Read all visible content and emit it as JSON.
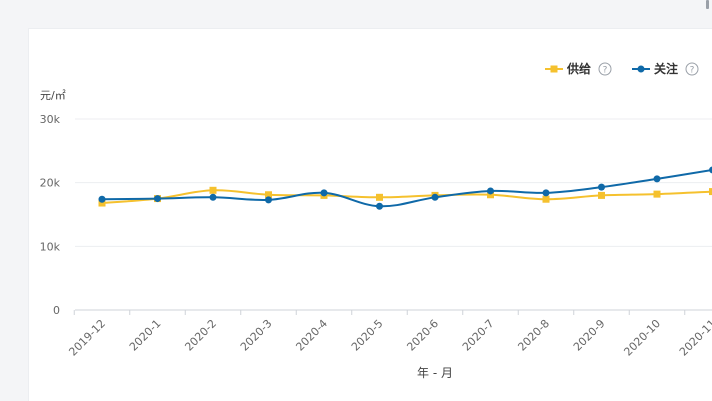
{
  "chart_data": {
    "type": "line",
    "title": "",
    "ylabel": "元/㎡",
    "xlabel": "年 - 月",
    "ylim": [
      0,
      30000
    ],
    "yticks": [
      {
        "value": 0,
        "label": "0"
      },
      {
        "value": 10000,
        "label": "10k"
      },
      {
        "value": 20000,
        "label": "20k"
      },
      {
        "value": 30000,
        "label": "30k"
      }
    ],
    "categories": [
      "2019-12",
      "2020-1",
      "2020-2",
      "2020-3",
      "2020-4",
      "2020-5",
      "2020-6",
      "2020-7",
      "2020-8",
      "2020-9",
      "2020-10",
      "2020-11"
    ],
    "series": [
      {
        "name": "供给",
        "color": "#f5c12e",
        "marker": "square",
        "values": [
          16800,
          17500,
          18800,
          18100,
          18000,
          17700,
          18000,
          18100,
          17400,
          18000,
          18200,
          18600
        ]
      },
      {
        "name": "关注",
        "color": "#0f69a8",
        "marker": "circle",
        "values": [
          17400,
          17500,
          17700,
          17300,
          18400,
          16300,
          17700,
          18700,
          18400,
          19300,
          20600,
          22000
        ]
      }
    ],
    "legend_position": "top-right",
    "grid": true
  },
  "legend": {
    "help_symbol": "?",
    "icon": "help-circle-icon"
  }
}
